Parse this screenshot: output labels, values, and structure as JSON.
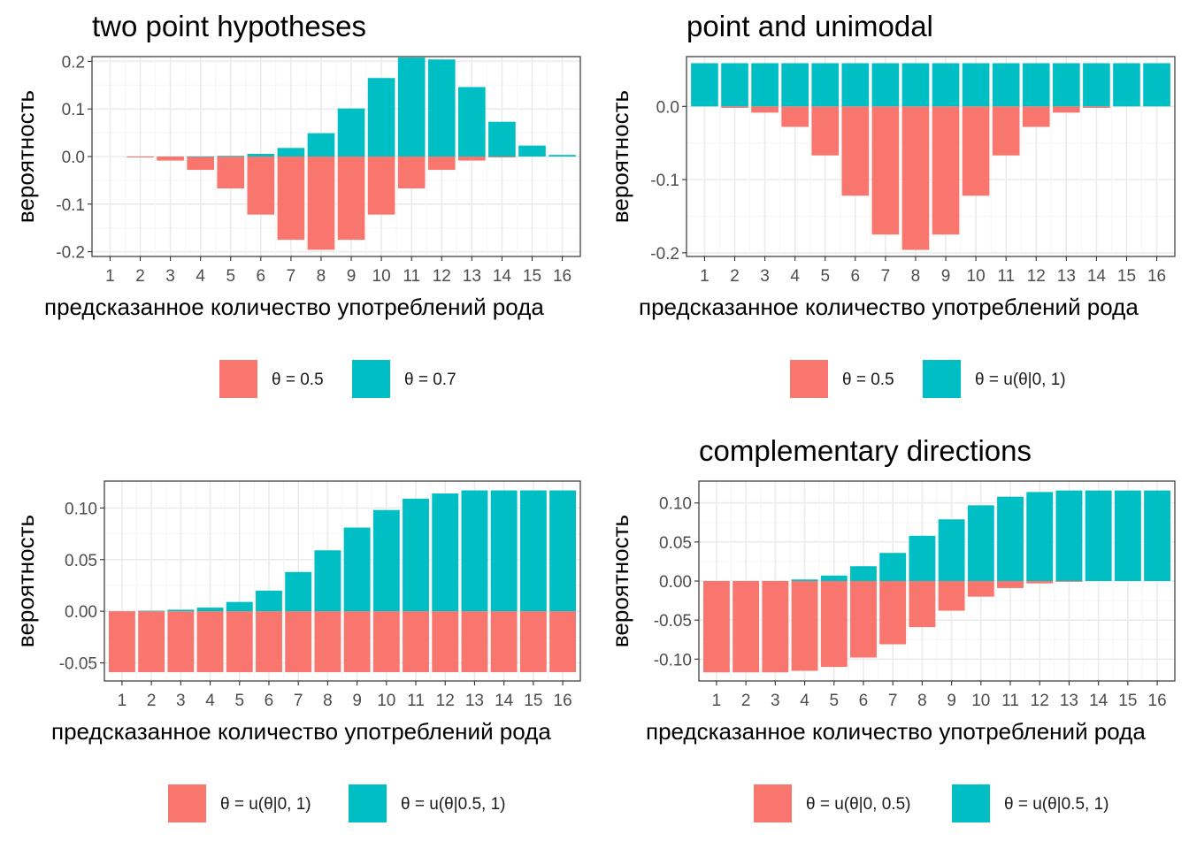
{
  "colors": {
    "red": "#F8766D",
    "teal": "#00BFC4",
    "grid_major": "#EBEBEB",
    "grid_minor": "#F5F5F5",
    "border": "#333333"
  },
  "chart_data": [
    {
      "type": "bar",
      "title": "two point hypotheses",
      "xlabel": "предсказанное количество употреблений рода",
      "ylabel": "вероятность",
      "categories": [
        "1",
        "2",
        "3",
        "4",
        "5",
        "6",
        "7",
        "8",
        "9",
        "10",
        "11",
        "12",
        "13",
        "14",
        "15",
        "16"
      ],
      "ylim": [
        -0.21,
        0.21
      ],
      "yticks": [
        -0.2,
        -0.1,
        0.0,
        0.1,
        0.2
      ],
      "yticklabels": [
        "-0.2",
        "-0.1",
        "0.0",
        "0.1",
        "0.2"
      ],
      "grid": true,
      "legend_position": "bottom",
      "series": [
        {
          "name": "θ = 0.5",
          "color": "#F8766D",
          "values": [
            0,
            -0.002,
            -0.0085,
            -0.028,
            -0.067,
            -0.122,
            -0.175,
            -0.196,
            -0.175,
            -0.122,
            -0.067,
            -0.028,
            -0.0085,
            -0.002,
            0,
            0
          ]
        },
        {
          "name": "θ = 0.7",
          "color": "#00BFC4",
          "values": [
            0,
            0,
            0,
            0.0003,
            0.0015,
            0.0056,
            0.018,
            0.049,
            0.101,
            0.165,
            0.208,
            0.204,
            0.146,
            0.073,
            0.023,
            0.0033
          ]
        }
      ]
    },
    {
      "type": "bar",
      "title": "point and unimodal",
      "xlabel": "предсказанное количество употреблений рода",
      "ylabel": "вероятность",
      "categories": [
        "1",
        "2",
        "3",
        "4",
        "5",
        "6",
        "7",
        "8",
        "9",
        "10",
        "11",
        "12",
        "13",
        "14",
        "15",
        "16"
      ],
      "ylim": [
        -0.205,
        0.068
      ],
      "yticks": [
        -0.2,
        -0.1,
        0.0
      ],
      "yticklabels": [
        "-0.2",
        "-0.1",
        "0.0"
      ],
      "grid": true,
      "legend_position": "bottom",
      "series": [
        {
          "name": "θ = 0.5",
          "color": "#F8766D",
          "values": [
            0,
            -0.002,
            -0.0085,
            -0.028,
            -0.067,
            -0.122,
            -0.175,
            -0.196,
            -0.175,
            -0.122,
            -0.067,
            -0.028,
            -0.0085,
            -0.002,
            0,
            0
          ]
        },
        {
          "name": "θ = u(θ|0, 1)",
          "color": "#00BFC4",
          "values": [
            0.059,
            0.059,
            0.059,
            0.059,
            0.059,
            0.059,
            0.059,
            0.059,
            0.059,
            0.059,
            0.059,
            0.059,
            0.059,
            0.059,
            0.059,
            0.059
          ]
        }
      ]
    },
    {
      "type": "bar",
      "title": "",
      "xlabel": "предсказанное количество употреблений рода",
      "ylabel": "вероятность",
      "categories": [
        "1",
        "2",
        "3",
        "4",
        "5",
        "6",
        "7",
        "8",
        "9",
        "10",
        "11",
        "12",
        "13",
        "14",
        "15",
        "16"
      ],
      "ylim": [
        -0.0675,
        0.126
      ],
      "yticks": [
        -0.05,
        0.0,
        0.05,
        0.1
      ],
      "yticklabels": [
        "-0.05",
        "0.00",
        "0.05",
        "0.10"
      ],
      "grid": true,
      "legend_position": "bottom",
      "series": [
        {
          "name": "θ = u(θ|0, 1)",
          "color": "#F8766D",
          "values": [
            -0.059,
            -0.059,
            -0.059,
            -0.059,
            -0.059,
            -0.059,
            -0.059,
            -0.059,
            -0.059,
            -0.059,
            -0.059,
            -0.059,
            -0.059,
            -0.059,
            -0.059,
            -0.059
          ]
        },
        {
          "name": "θ = u(θ|0.5, 1)",
          "color": "#00BFC4",
          "values": [
            0,
            0.0005,
            0.0015,
            0.0035,
            0.009,
            0.02,
            0.038,
            0.059,
            0.081,
            0.098,
            0.109,
            0.114,
            0.117,
            0.117,
            0.117,
            0.117
          ]
        }
      ]
    },
    {
      "type": "bar",
      "title": "complementary directions",
      "xlabel": "предсказанное количество употреблений рода",
      "ylabel": "вероятность",
      "categories": [
        "1",
        "2",
        "3",
        "4",
        "5",
        "6",
        "7",
        "8",
        "9",
        "10",
        "11",
        "12",
        "13",
        "14",
        "15",
        "16"
      ],
      "ylim": [
        -0.128,
        0.128
      ],
      "yticks": [
        -0.1,
        -0.05,
        0.0,
        0.05,
        0.1
      ],
      "yticklabels": [
        "-0.10",
        "-0.05",
        "0.00",
        "0.05",
        "0.10"
      ],
      "grid": true,
      "legend_position": "bottom",
      "series": [
        {
          "name": "θ = u(θ|0, 0.5)",
          "color": "#F8766D",
          "values": [
            -0.117,
            -0.117,
            -0.117,
            -0.115,
            -0.11,
            -0.098,
            -0.081,
            -0.059,
            -0.038,
            -0.02,
            -0.009,
            -0.003,
            -0.001,
            0,
            0,
            0
          ]
        },
        {
          "name": "θ = u(θ|0.5, 1)",
          "color": "#00BFC4",
          "values": [
            0,
            0,
            0,
            0.002,
            0.007,
            0.019,
            0.036,
            0.058,
            0.079,
            0.097,
            0.108,
            0.114,
            0.116,
            0.116,
            0.116,
            0.116
          ]
        }
      ]
    }
  ]
}
